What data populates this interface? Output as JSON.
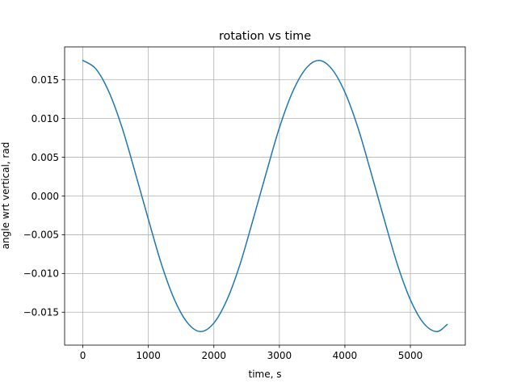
{
  "chart_data": {
    "type": "line",
    "title": "rotation vs time",
    "xlabel": "time, s",
    "ylabel": "angle wrt vertical, rad",
    "xlim": [
      -278,
      5838
    ],
    "ylim": [
      -0.01925,
      0.01925
    ],
    "xticks": [
      0,
      1000,
      2000,
      3000,
      4000,
      5000
    ],
    "xtick_labels": [
      "0",
      "1000",
      "2000",
      "3000",
      "4000",
      "5000"
    ],
    "yticks": [
      -0.015,
      -0.01,
      -0.005,
      0.0,
      0.005,
      0.01,
      0.015
    ],
    "ytick_labels": [
      "−0.015",
      "−0.010",
      "−0.005",
      "0.000",
      "0.005",
      "0.010",
      "0.015"
    ],
    "grid": true,
    "series": [
      {
        "color": "#1f77b4",
        "x": [
          0,
          200,
          400,
          600,
          800,
          1000,
          1200,
          1400,
          1600,
          1800,
          2000,
          2200,
          2400,
          2600,
          2800,
          3000,
          3200,
          3400,
          3600,
          3800,
          4000,
          4200,
          4400,
          4600,
          4800,
          5000,
          5200,
          5400,
          5560
        ],
        "y": [
          0.0175,
          0.0164,
          0.0134,
          0.0088,
          0.003,
          -0.003,
          -0.0088,
          -0.0134,
          -0.0164,
          -0.0175,
          -0.0164,
          -0.0134,
          -0.0088,
          -0.003,
          0.003,
          0.0088,
          0.0134,
          0.0164,
          0.0175,
          0.0164,
          0.0134,
          0.0088,
          0.003,
          -0.003,
          -0.0088,
          -0.0134,
          -0.0164,
          -0.0175,
          -0.0166
        ]
      }
    ]
  }
}
